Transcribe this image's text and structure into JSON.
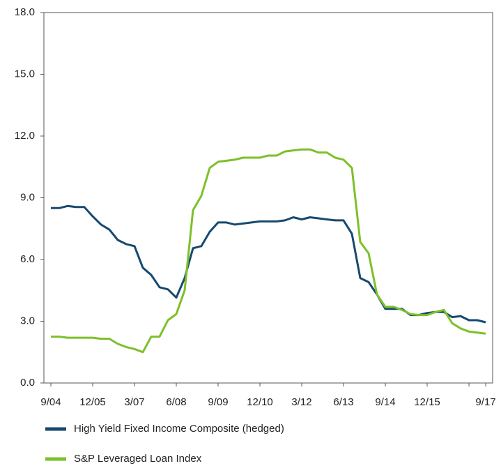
{
  "chart_data": {
    "type": "line",
    "categories": [
      "9/04",
      null,
      null,
      null,
      null,
      "12/05",
      null,
      null,
      null,
      null,
      "3/07",
      null,
      null,
      null,
      null,
      "6/08",
      null,
      null,
      null,
      null,
      "9/09",
      null,
      null,
      null,
      null,
      "12/10",
      null,
      null,
      null,
      null,
      "3/12",
      null,
      null,
      null,
      null,
      "6/13",
      null,
      null,
      null,
      null,
      "9/14",
      null,
      null,
      null,
      null,
      "12/15",
      null,
      null,
      null,
      null,
      null,
      null,
      "9/17"
    ],
    "series": [
      {
        "name": "High Yield Fixed Income Composite (hedged)",
        "color": "#17496f",
        "values": [
          8.5,
          8.5,
          8.6,
          8.55,
          8.55,
          8.1,
          7.7,
          7.45,
          6.95,
          6.75,
          6.65,
          5.6,
          5.25,
          4.65,
          4.55,
          4.15,
          5.1,
          6.55,
          6.65,
          7.35,
          7.8,
          7.8,
          7.7,
          7.75,
          7.8,
          7.85,
          7.85,
          7.85,
          7.9,
          8.05,
          7.95,
          8.05,
          8.0,
          7.95,
          7.9,
          7.9,
          7.25,
          5.1,
          4.9,
          4.3,
          3.6,
          3.6,
          3.6,
          3.3,
          3.3,
          3.4,
          3.45,
          3.45,
          3.2,
          3.25,
          3.05,
          3.05,
          2.95
        ]
      },
      {
        "name": "S&P Leveraged Loan Index",
        "color": "#7dc02a",
        "values": [
          2.25,
          2.25,
          2.2,
          2.2,
          2.2,
          2.2,
          2.15,
          2.15,
          1.9,
          1.75,
          1.65,
          1.5,
          2.25,
          2.25,
          3.05,
          3.35,
          4.5,
          8.4,
          9.1,
          10.45,
          10.75,
          10.8,
          10.85,
          10.95,
          10.95,
          10.95,
          11.05,
          11.05,
          11.25,
          11.3,
          11.35,
          11.35,
          11.2,
          11.2,
          10.95,
          10.85,
          10.45,
          6.85,
          6.3,
          4.3,
          3.7,
          3.7,
          3.55,
          3.35,
          3.3,
          3.3,
          3.45,
          3.55,
          2.9,
          2.65,
          2.5,
          2.45,
          2.4
        ]
      }
    ],
    "ylim": [
      0,
      18
    ],
    "yticks": [
      {
        "value": 0,
        "label": "0.0"
      },
      {
        "value": 3,
        "label": "3.0"
      },
      {
        "value": 6,
        "label": "6.0"
      },
      {
        "value": 9,
        "label": "9.0"
      },
      {
        "value": 12,
        "label": "12.0"
      },
      {
        "value": 15,
        "label": "15.0"
      },
      {
        "value": 18,
        "label": "18.0"
      }
    ],
    "grid": false
  }
}
